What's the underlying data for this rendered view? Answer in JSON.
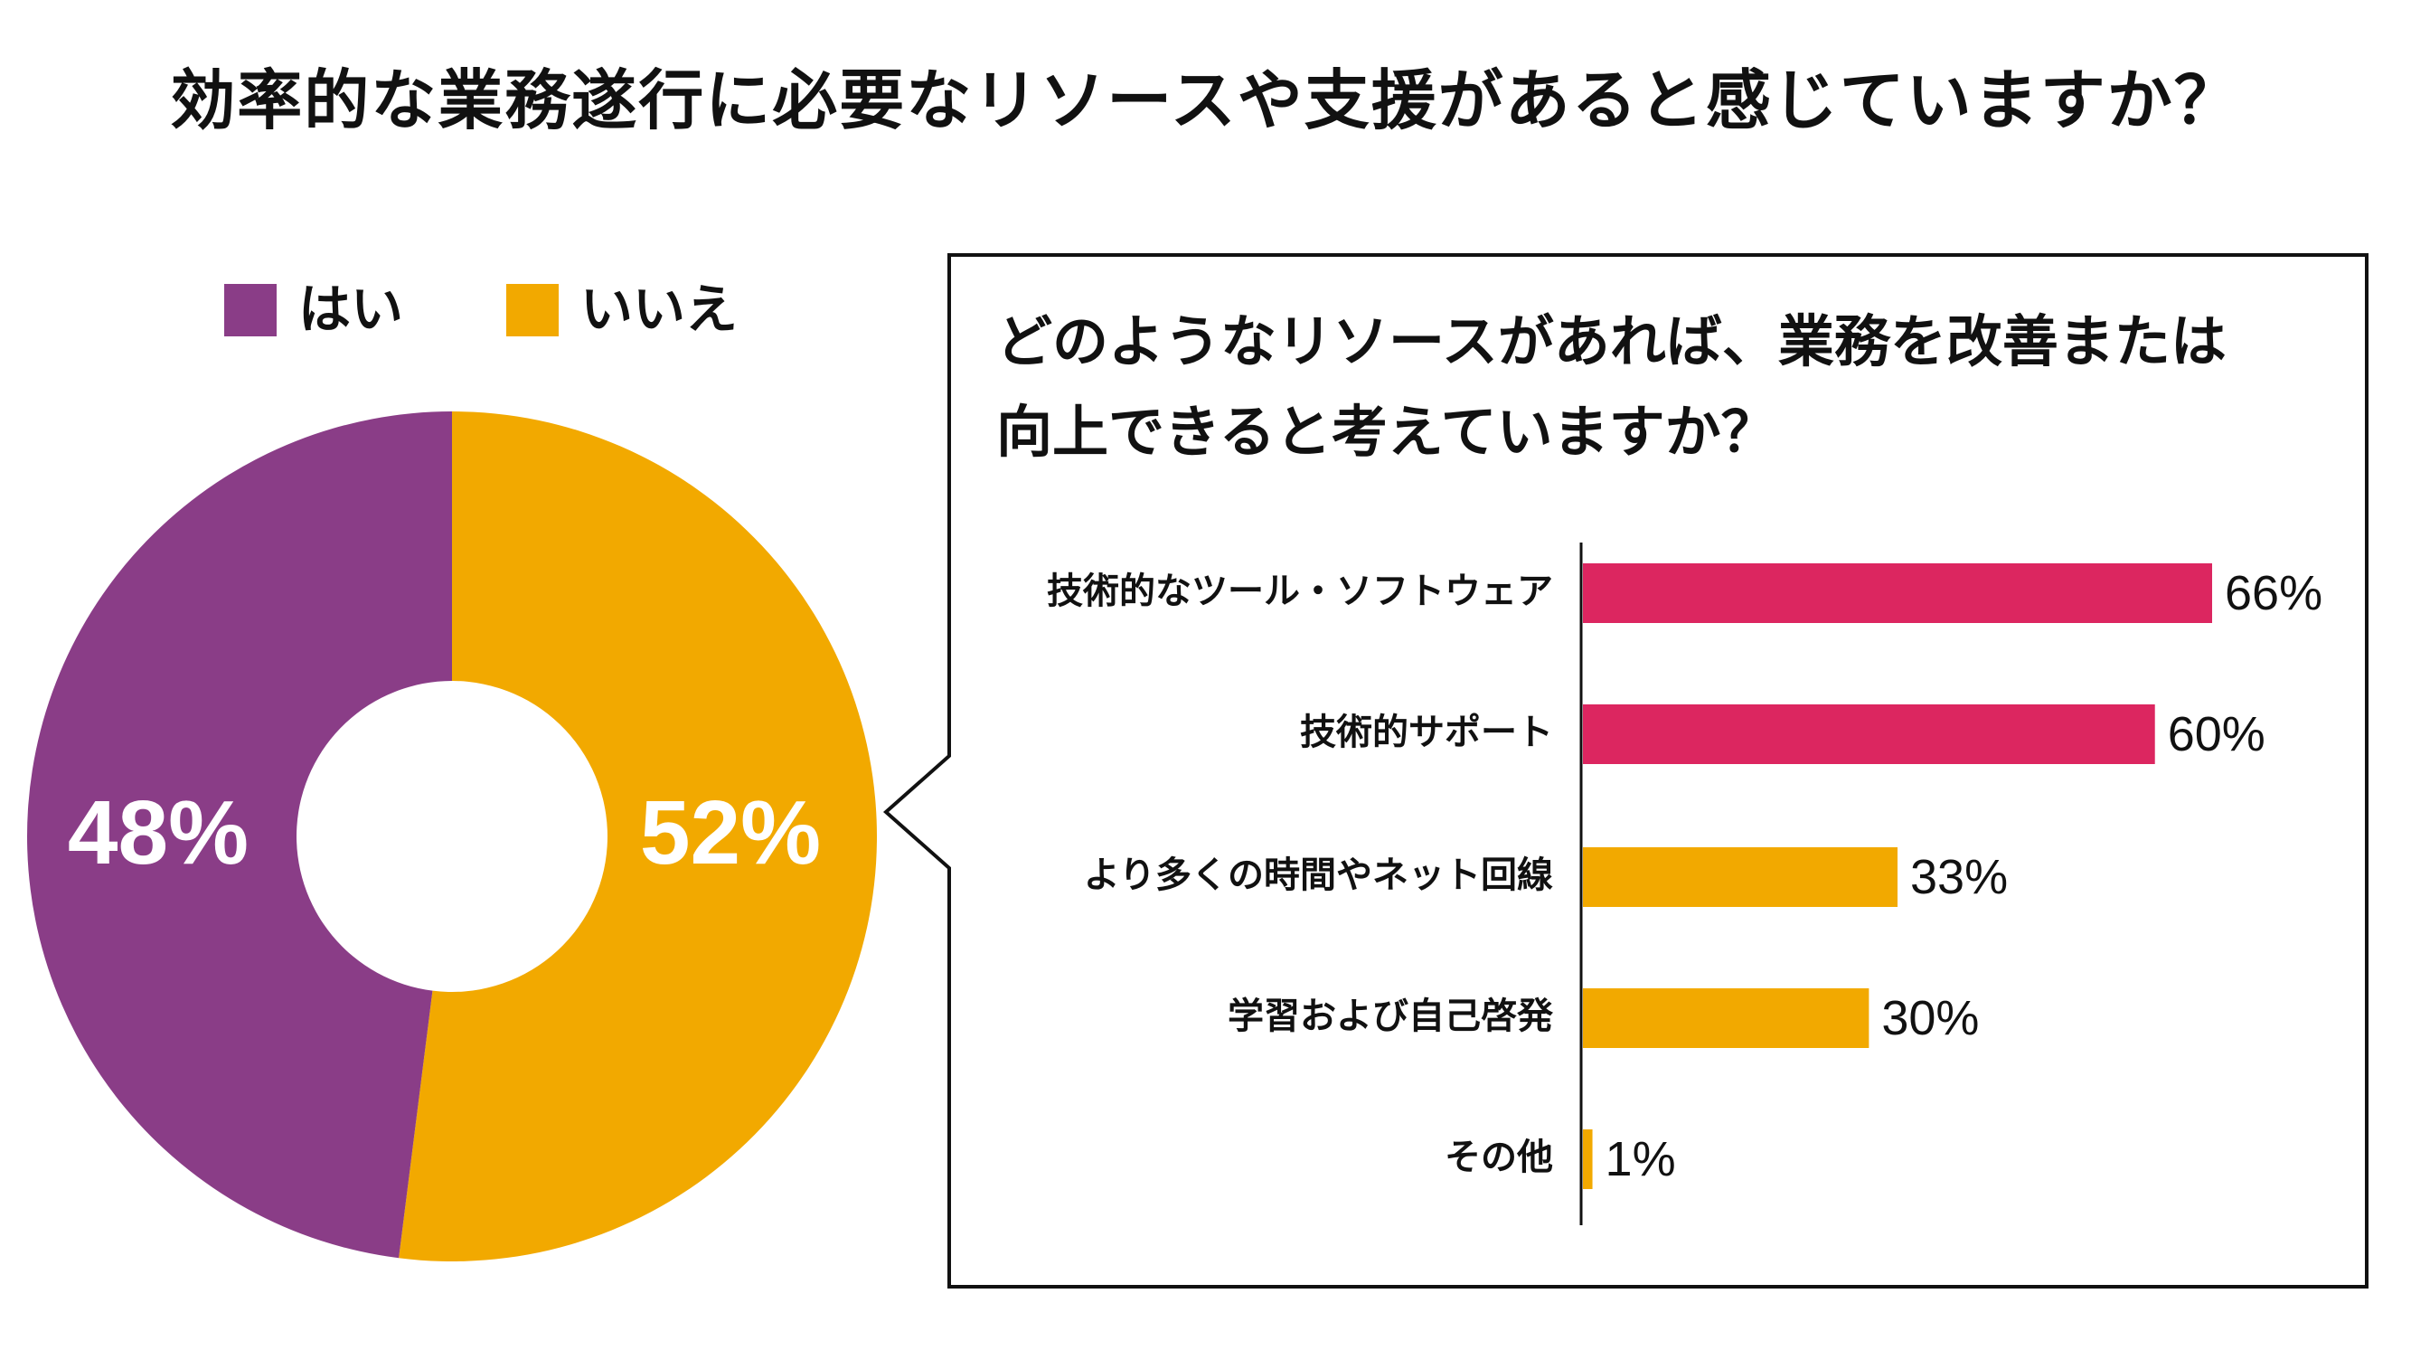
{
  "title": "効率的な業務遂行に必要なリソースや支援があると感じていますか？",
  "chart_data": [
    {
      "type": "pie",
      "variant": "donut",
      "title": "効率的な業務遂行に必要なリソースや支援があると感じていますか？",
      "legend_position": "top",
      "slices": [
        {
          "name": "いいえ",
          "value": 52,
          "label": "52%",
          "color": "#f2a900"
        },
        {
          "name": "はい",
          "value": 48,
          "label": "48%",
          "color": "#8a3d87"
        }
      ],
      "legend": [
        {
          "name": "はい",
          "color": "#8a3d87"
        },
        {
          "name": "いいえ",
          "color": "#f2a900"
        }
      ]
    },
    {
      "type": "bar",
      "orientation": "horizontal",
      "title_lines": [
        "どのようなリソースがあれば、業務を改善または",
        "向上できると考えていますか？"
      ],
      "xlim": [
        0,
        80
      ],
      "categories": [
        "技術的なツール・ソフトウェア",
        "技術的サポート",
        "より多くの時間やネット回線",
        "学習および自己啓発",
        "その他"
      ],
      "values": [
        66,
        60,
        33,
        30,
        1
      ],
      "value_labels": [
        "66%",
        "60%",
        "33%",
        "30%",
        "1%"
      ],
      "colors": [
        "#dc2660",
        "#dc2660",
        "#f2a900",
        "#f2a900",
        "#f2a900"
      ]
    }
  ]
}
